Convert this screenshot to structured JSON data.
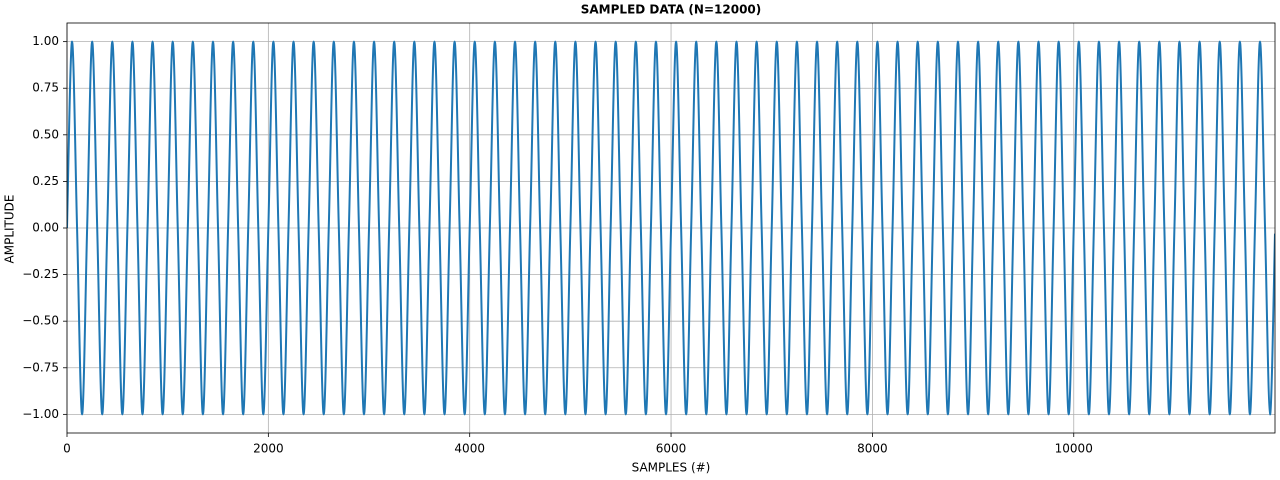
{
  "chart_data": {
    "type": "line",
    "title": "SAMPLED DATA (N=12000)",
    "xlabel": "SAMPLES (#)",
    "ylabel": "AMPLITUDE",
    "x": [
      0,
      50,
      100,
      150,
      200,
      250,
      300,
      350,
      400,
      450,
      500,
      550,
      600,
      650,
      700,
      750,
      800,
      850,
      900,
      950,
      1000,
      1050,
      1100,
      1150,
      1200,
      1250,
      1300,
      1350,
      1400,
      1450,
      1500,
      1550,
      1600,
      1650,
      1700,
      1750,
      1800,
      1850,
      1900,
      1950,
      2000,
      2050,
      2100,
      2150,
      2200,
      2250,
      2300,
      2350,
      2400,
      2450,
      2500,
      2550,
      2600,
      2650,
      2700,
      2750,
      2800,
      2850,
      2900,
      2950,
      3000,
      3050,
      3100,
      3150,
      3200,
      3250,
      3300,
      3350,
      3400,
      3450,
      3500,
      3550,
      3600,
      3650,
      3700,
      3750,
      3800,
      3850,
      3900,
      3950,
      4000,
      4050,
      4100,
      4150,
      4200,
      4250,
      4300,
      4350,
      4400,
      4450,
      4500,
      4550,
      4600,
      4650,
      4700,
      4750,
      4800,
      4850,
      4900,
      4950,
      5000,
      5050,
      5100,
      5150,
      5200,
      5250,
      5300,
      5350,
      5400,
      5450,
      5500,
      5550,
      5600,
      5650,
      5700,
      5750,
      5800,
      5850,
      5900,
      5950,
      6000,
      6050,
      6100,
      6150,
      6200,
      6250,
      6300,
      6350,
      6400,
      6450,
      6500,
      6550,
      6600,
      6650,
      6700,
      6750,
      6800,
      6850,
      6900,
      6950,
      7000,
      7050,
      7100,
      7150,
      7200,
      7250,
      7300,
      7350,
      7400,
      7450,
      7500,
      7550,
      7600,
      7650,
      7700,
      7750,
      7800,
      7850,
      7900,
      7950,
      8000,
      8050,
      8100,
      8150,
      8200,
      8250,
      8300,
      8350,
      8400,
      8450,
      8500,
      8550,
      8600,
      8650,
      8700,
      8750,
      8800,
      8850,
      8900,
      8950,
      9000,
      9050,
      9100,
      9150,
      9200,
      9250,
      9300,
      9350,
      9400,
      9450,
      9500,
      9550,
      9600,
      9650,
      9700,
      9750,
      9800,
      9850,
      9900,
      9950,
      10000,
      10050,
      10100,
      10150,
      10200,
      10250,
      10300,
      10350,
      10400,
      10450,
      10500,
      10550,
      10600,
      10650,
      10700,
      10750,
      10800,
      10850,
      10900,
      10950,
      11000,
      11050,
      11100,
      11150,
      11200,
      11250,
      11300,
      11350,
      11400,
      11450,
      11500,
      11550,
      11600,
      11650,
      11700,
      11750,
      11800,
      11850,
      11900,
      11950,
      11999
    ],
    "series": [
      {
        "color": "#1f77b4",
        "values": [
          0,
          1,
          0,
          -1,
          0,
          1,
          0,
          -1,
          0,
          1,
          0,
          -1,
          0,
          1,
          0,
          -1,
          0,
          1,
          0,
          -1,
          0,
          1,
          0,
          -1,
          0,
          1,
          0,
          -1,
          0,
          1,
          0,
          -1,
          0,
          1,
          0,
          -1,
          0,
          1,
          0,
          -1,
          0,
          1,
          0,
          -1,
          0,
          1,
          0,
          -1,
          0,
          1,
          0,
          -1,
          0,
          1,
          0,
          -1,
          0,
          1,
          0,
          -1,
          0,
          1,
          0,
          -1,
          0,
          1,
          0,
          -1,
          0,
          1,
          0,
          -1,
          0,
          1,
          0,
          -1,
          0,
          1,
          0,
          -1,
          0,
          1,
          0,
          -1,
          0,
          1,
          0,
          -1,
          0,
          1,
          0,
          -1,
          0,
          1,
          0,
          -1,
          0,
          1,
          0,
          -1,
          0,
          1,
          0,
          -1,
          0,
          1,
          0,
          -1,
          0,
          1,
          0,
          -1,
          0,
          1,
          0,
          -1,
          0,
          1,
          0,
          -1,
          0,
          1,
          0,
          -1,
          0,
          1,
          0,
          -1,
          0,
          1,
          0,
          -1,
          0,
          1,
          0,
          -1,
          0,
          1,
          0,
          -1,
          0,
          1,
          0,
          -1,
          0,
          1,
          0,
          -1,
          0,
          1,
          0,
          -1,
          0,
          1,
          0,
          -1,
          0,
          1,
          0,
          -1,
          0,
          1,
          0,
          -1,
          0,
          1,
          0,
          -1,
          0,
          1,
          0,
          -1,
          0,
          1,
          0,
          -1,
          0,
          1,
          0,
          -1,
          0,
          1,
          0,
          -1,
          0,
          1,
          0,
          -1,
          0,
          1,
          0,
          -1,
          0,
          1,
          0,
          -1,
          0,
          1,
          0,
          -1,
          0,
          1,
          0,
          -1,
          0,
          1,
          0,
          -1,
          0,
          1,
          0,
          -1,
          0,
          1,
          0,
          -1,
          0,
          1,
          0,
          -1,
          0,
          1,
          0,
          -1,
          0,
          1,
          0,
          -1,
          0,
          1,
          0,
          -1,
          0,
          1,
          0,
          -1,
          0,
          1,
          0,
          -1,
          -0.03
        ]
      }
    ],
    "xlim": [
      0,
      11999
    ],
    "xticks": [
      0,
      2000,
      4000,
      6000,
      8000,
      10000
    ],
    "ylim": [
      -1.1,
      1.1
    ],
    "yticks": [
      {
        "value": -1,
        "label": "−1.00"
      },
      {
        "value": -0.75,
        "label": "−0.75"
      },
      {
        "value": -0.5,
        "label": "−0.50"
      },
      {
        "value": -0.25,
        "label": "−0.25"
      },
      {
        "value": 0,
        "label": "0.00"
      },
      {
        "value": 0.25,
        "label": "0.25"
      },
      {
        "value": 0.5,
        "label": "0.50"
      },
      {
        "value": 0.75,
        "label": "0.75"
      },
      {
        "value": 1,
        "label": "1.00"
      }
    ],
    "grid": true
  }
}
